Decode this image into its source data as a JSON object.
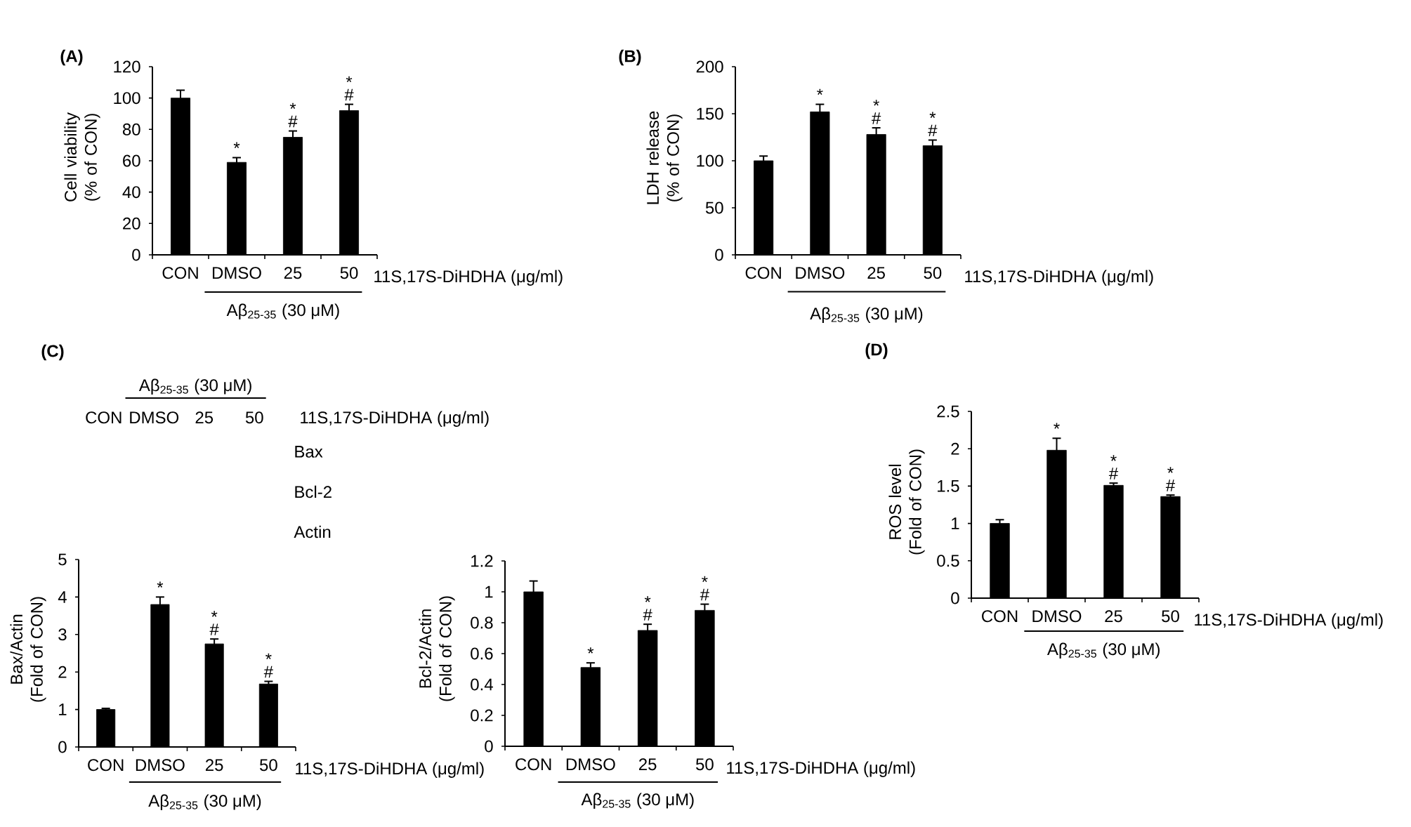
{
  "chart_data": [
    {
      "type": "bar",
      "title": "(A)",
      "ylabel": "Cell viability (% of CON)",
      "xlabel": "11S,17S-DiHDHA (μg/ml)",
      "categories": [
        "CON",
        "DMSO",
        "25",
        "50"
      ],
      "values": [
        100,
        59,
        75,
        92
      ],
      "errors": [
        5,
        3,
        4,
        4
      ],
      "color": "#000000",
      "ylim": [
        0,
        120
      ],
      "yticks": [
        0,
        20,
        40,
        60,
        80,
        100,
        120
      ],
      "annotations": [
        "Aβ$_{25-35}$ (30 μM)",
        {
          "text": "*",
          "x": "DMSO",
          "y": 59
        },
        {
          "text": "#",
          "x": "25",
          "y": 75
        },
        {
          "text": "*",
          "x": "25",
          "y": 75
        },
        {
          "text": "#",
          "x": "50",
          "y": 92
        },
        {
          "text": "*",
          "x": "50",
          "y": 92
        }
      ]
    },
    {
      "type": "bar",
      "title": "(B)",
      "ylabel": "LDH release (% of CON)",
      "xlabel": "11S,17S-DiHDHA (μg/ml)",
      "categories": [
        "CON",
        "DMSO",
        "25",
        "50"
      ],
      "values": [
        100,
        152,
        128,
        116
      ],
      "errors": [
        5,
        8,
        7,
        6
      ],
      "color": "#000000",
      "ylim": [
        0,
        200
      ],
      "yticks": [
        0,
        50,
        100,
        150,
        200
      ],
      "annotations": [
        "Aβ$_{25-35}$ (30 μM)",
        {
          "text": "*",
          "x": "DMSO",
          "y": 152
        },
        {
          "text": "#",
          "x": "25",
          "y": 128
        },
        {
          "text": "*",
          "x": "25",
          "y": 128
        },
        {
          "text": "#",
          "x": "50",
          "y": 116
        },
        {
          "text": "*",
          "x": "50",
          "y": 116
        }
      ]
    },
    {
      "type": "other",
      "title": "(C)",
      "xlabel": "11S,17S-DiHDHA (μg/ml)",
      "categories": [
        "CON",
        "DMSO",
        "25",
        "50"
      ],
      "y_categories": [
        "Bax",
        "Bcl-2",
        "Actin"
      ],
      "annotations": [
        "Aβ$_{25-35}$ (30 μM)"
      ]
    },
    {
      "type": "bar",
      "ylabel": "Bax/Actin (Fold of CON)",
      "xlabel": "11S,17S-DiHDHA (μg/ml)",
      "categories": [
        "CON",
        "DMSO",
        "25",
        "50"
      ],
      "values": [
        1,
        3.8,
        2.75,
        1.68
      ],
      "errors": [
        0.03,
        0.2,
        0.13,
        0.07
      ],
      "color": "#000000",
      "ylim": [
        0,
        5
      ],
      "yticks": [
        0,
        1,
        2,
        3,
        4,
        5
      ],
      "annotations": [
        "Aβ$_{25-35}$ (30 μM)",
        {
          "text": "*",
          "x": "DMSO",
          "y": 3.8
        },
        {
          "text": "#",
          "x": "25",
          "y": 2.75
        },
        {
          "text": "*",
          "x": "25",
          "y": 2.75
        },
        {
          "text": "#",
          "x": "50",
          "y": 1.68
        },
        {
          "text": "*",
          "x": "50",
          "y": 1.68
        }
      ]
    },
    {
      "type": "bar",
      "ylabel": "Bcl-2/Actin (Fold of CON)",
      "xlabel": "11S,17S-DiHDHA (μg/ml)",
      "categories": [
        "CON",
        "DMSO",
        "25",
        "50"
      ],
      "values": [
        1,
        0.51,
        0.75,
        0.88
      ],
      "errors": [
        0.07,
        0.03,
        0.04,
        0.04
      ],
      "color": "#000000",
      "ylim": [
        0,
        1.2
      ],
      "yticks": [
        0,
        0.2,
        0.4,
        0.6,
        0.8,
        1,
        1.2
      ],
      "annotations": [
        "Aβ$_{25-35}$ (30 μM)",
        {
          "text": "*",
          "x": "DMSO",
          "y": 0.51
        },
        {
          "text": "#",
          "x": "25",
          "y": 0.75
        },
        {
          "text": "*",
          "x": "25",
          "y": 0.75
        },
        {
          "text": "#",
          "x": "50",
          "y": 0.88
        },
        {
          "text": "*",
          "x": "50",
          "y": 0.88
        }
      ]
    },
    {
      "type": "bar",
      "title": "(D)",
      "ylabel": "ROS level (Fold of CON)",
      "xlabel": "11S,17S-DiHDHA (μg/ml)",
      "categories": [
        "CON",
        "DMSO",
        "25",
        "50"
      ],
      "values": [
        1,
        1.98,
        1.51,
        1.36
      ],
      "errors": [
        0.05,
        0.16,
        0.03,
        0.02
      ],
      "color": "#000000",
      "ylim": [
        0,
        2.5
      ],
      "yticks": [
        0,
        0.5,
        1,
        1.5,
        2,
        2.5
      ],
      "annotations": [
        "Aβ$_{25-35}$ (30 μM)",
        {
          "text": "*",
          "x": "DMSO",
          "y": 1.98
        },
        {
          "text": "#",
          "x": "25",
          "y": 1.51
        },
        {
          "text": "*",
          "x": "25",
          "y": 1.51
        },
        {
          "text": "#",
          "x": "50",
          "y": 1.36
        },
        {
          "text": "*",
          "x": "50",
          "y": 1.36
        }
      ]
    }
  ]
}
